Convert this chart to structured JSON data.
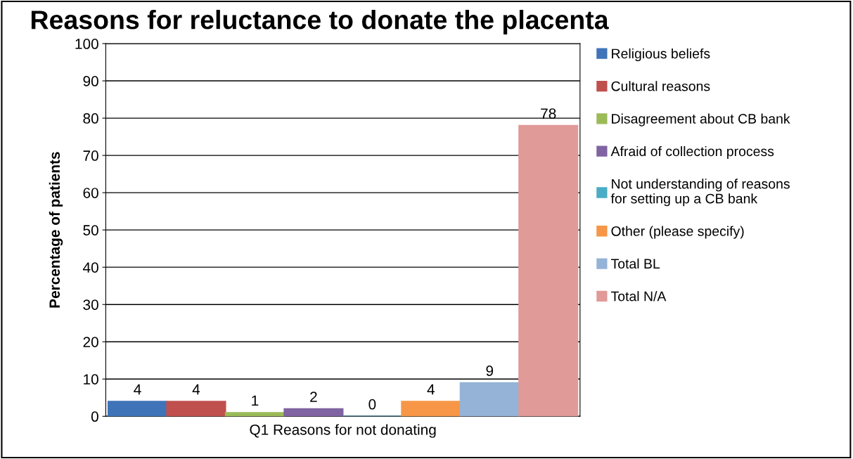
{
  "chart_data": {
    "type": "bar",
    "title": "Reasons for reluctance to donate the placenta",
    "ylabel": "Percentage of patients",
    "categories": [
      "Q1 Reasons for not donating"
    ],
    "series": [
      {
        "name": "Religious beliefs",
        "color": "#3f74b8",
        "values": [
          4
        ]
      },
      {
        "name": "Cultural reasons",
        "color": "#c0504d",
        "values": [
          4
        ]
      },
      {
        "name": "Disagreement about CB bank",
        "color": "#9bbb59",
        "values": [
          1
        ]
      },
      {
        "name": "Afraid of collection process",
        "color": "#8064a2",
        "values": [
          2
        ]
      },
      {
        "name": "Not understanding of reasons\nfor setting up a CB bank",
        "color": "#4bacc6",
        "values": [
          0
        ]
      },
      {
        "name": "Other (please specify)",
        "color": "#f79646",
        "values": [
          4
        ]
      },
      {
        "name": "Total BL",
        "color": "#95b3d7",
        "values": [
          9
        ]
      },
      {
        "name": "Total N/A",
        "color": "#e09a98",
        "values": [
          78
        ]
      }
    ],
    "ylim": [
      0,
      100
    ],
    "yticks": [
      0,
      10,
      20,
      30,
      40,
      50,
      60,
      70,
      80,
      90,
      100
    ],
    "grid": "y",
    "legend": "right",
    "data_labels": true
  }
}
